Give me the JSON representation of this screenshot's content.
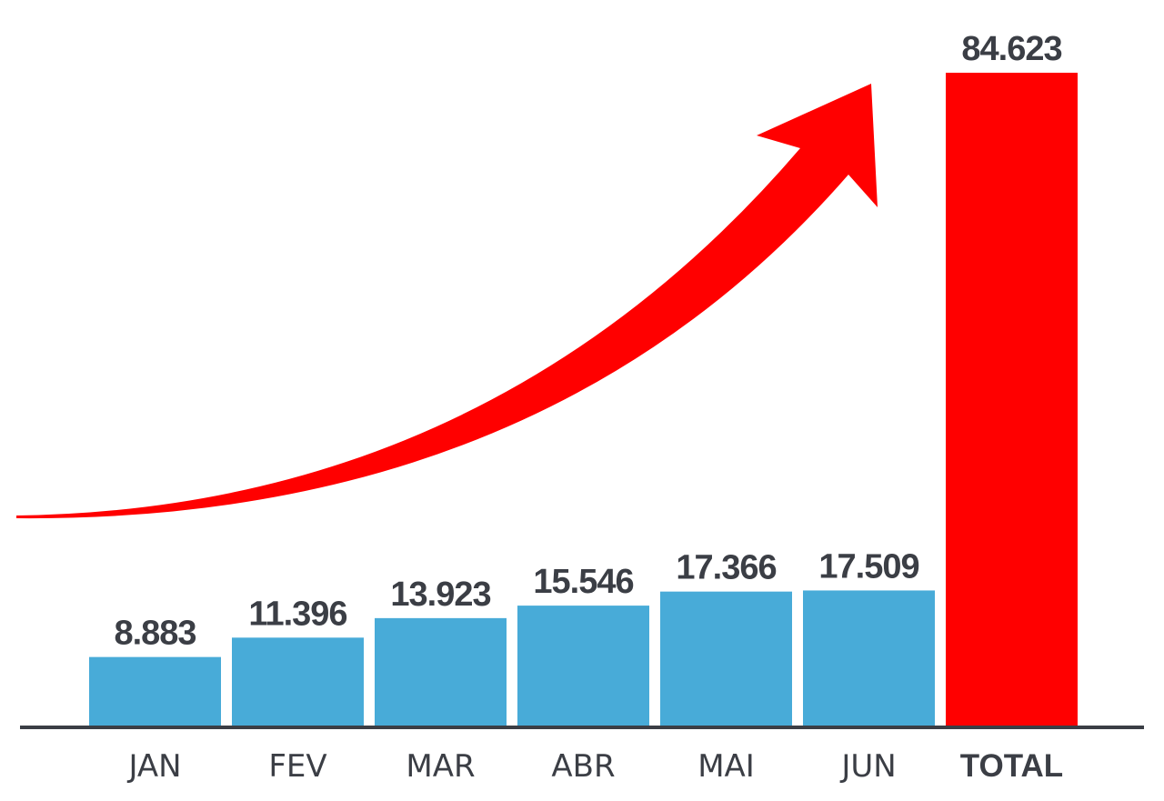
{
  "chart_data": {
    "type": "bar",
    "categories": [
      "JAN",
      "FEV",
      "MAR",
      "ABR",
      "MAI",
      "JUN",
      "TOTAL"
    ],
    "values": [
      8883,
      11396,
      13923,
      15546,
      17366,
      17509,
      84623
    ],
    "value_labels": [
      "8.883",
      "11.396",
      "13.923",
      "15.546",
      "17.366",
      "17.509",
      "84.623"
    ],
    "highlight_index": 6,
    "colors": {
      "bar": "#48abd8",
      "highlight": "#ff0000",
      "arrow": "#ff0000",
      "baseline": "#3b3e45",
      "text": "#3b3e45"
    },
    "decoration": "rising-arrow",
    "title": "",
    "xlabel": "",
    "ylabel": "",
    "grid": false,
    "legend": "none"
  }
}
